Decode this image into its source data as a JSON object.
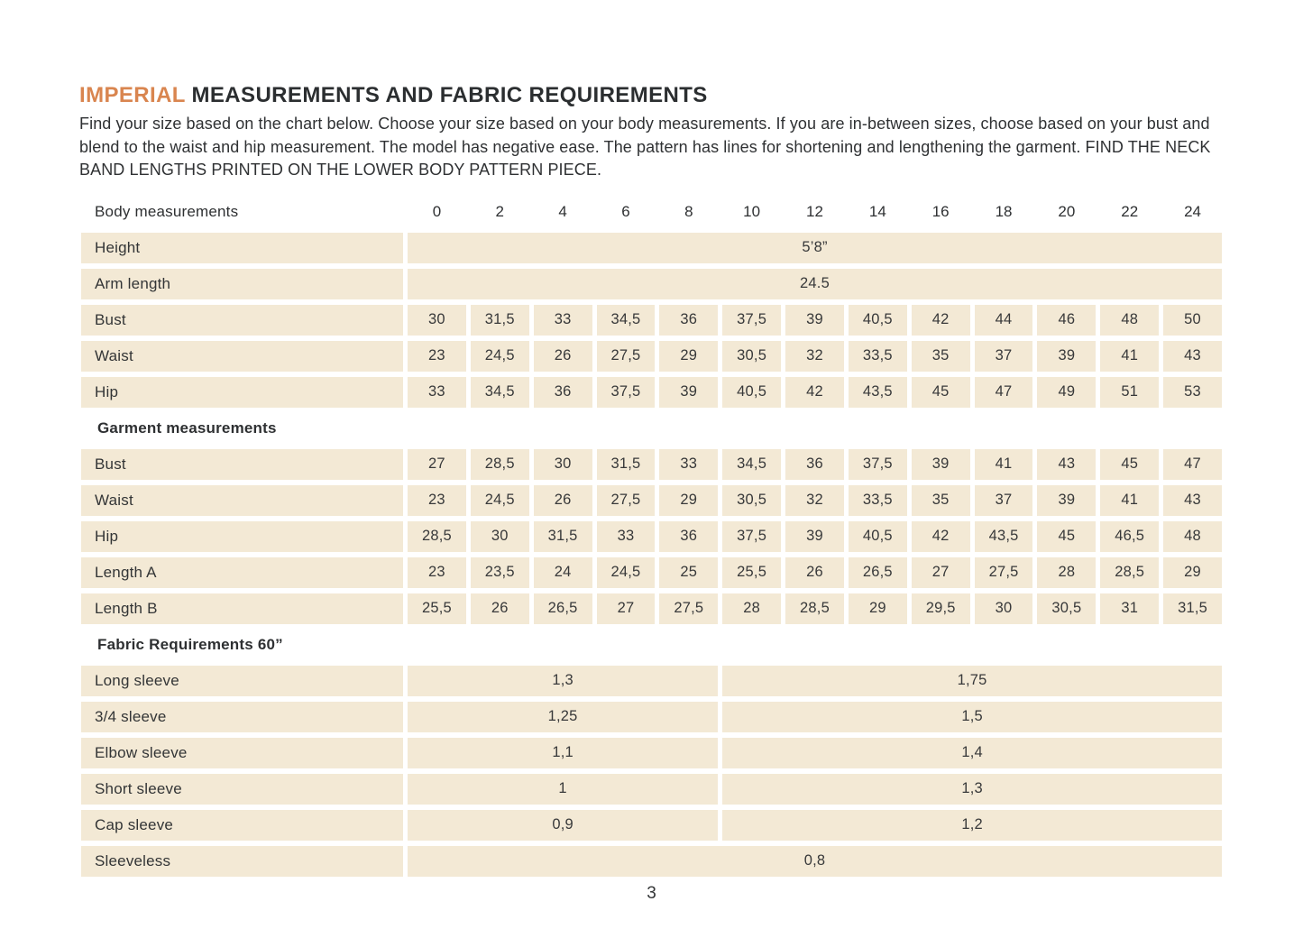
{
  "page": {
    "title_highlight": "IMPERIAL",
    "title_rest": " MEASUREMENTS AND FABRIC REQUIREMENTS",
    "intro": "Find your size based on the chart below. Choose your size based on your body measurements. If you are in-between sizes, choose based on your bust and blend to the waist and hip measurement. The model has negative ease. The pattern has lines for shortening and lengthening the garment. FIND THE NECK BAND LENGTHS PRINTED ON THE LOWER BODY PATTERN PIECE.",
    "page_number": "3"
  },
  "colors": {
    "accent_orange": "#d9854f",
    "cell_beige": "#f3e9d5",
    "text_dark": "#2e3032"
  },
  "size_table": {
    "header_label": "Body measurements",
    "sizes": [
      "0",
      "2",
      "4",
      "6",
      "8",
      "10",
      "12",
      "14",
      "16",
      "18",
      "20",
      "22",
      "24"
    ],
    "body_rows": [
      {
        "label": "Height",
        "type": "full",
        "value": "5’8”"
      },
      {
        "label": "Arm length",
        "type": "full",
        "value": "24.5"
      },
      {
        "label": "Bust",
        "type": "cells",
        "values": [
          "30",
          "31,5",
          "33",
          "34,5",
          "36",
          "37,5",
          "39",
          "40,5",
          "42",
          "44",
          "46",
          "48",
          "50"
        ]
      },
      {
        "label": "Waist",
        "type": "cells",
        "values": [
          "23",
          "24,5",
          "26",
          "27,5",
          "29",
          "30,5",
          "32",
          "33,5",
          "35",
          "37",
          "39",
          "41",
          "43"
        ]
      },
      {
        "label": "Hip",
        "type": "cells",
        "values": [
          "33",
          "34,5",
          "36",
          "37,5",
          "39",
          "40,5",
          "42",
          "43,5",
          "45",
          "47",
          "49",
          "51",
          "53"
        ]
      }
    ],
    "garment_section_label": "Garment measurements",
    "garment_rows": [
      {
        "label": "Bust",
        "type": "cells",
        "values": [
          "27",
          "28,5",
          "30",
          "31,5",
          "33",
          "34,5",
          "36",
          "37,5",
          "39",
          "41",
          "43",
          "45",
          "47"
        ]
      },
      {
        "label": "Waist",
        "type": "cells",
        "values": [
          "23",
          "24,5",
          "26",
          "27,5",
          "29",
          "30,5",
          "32",
          "33,5",
          "35",
          "37",
          "39",
          "41",
          "43"
        ]
      },
      {
        "label": "Hip",
        "type": "cells",
        "values": [
          "28,5",
          "30",
          "31,5",
          "33",
          "36",
          "37,5",
          "39",
          "40,5",
          "42",
          "43,5",
          "45",
          "46,5",
          "48"
        ]
      },
      {
        "label": "Length A",
        "type": "cells",
        "values": [
          "23",
          "23,5",
          "24",
          "24,5",
          "25",
          "25,5",
          "26",
          "26,5",
          "27",
          "27,5",
          "28",
          "28,5",
          "29"
        ]
      },
      {
        "label": "Length B",
        "type": "cells",
        "values": [
          "25,5",
          "26",
          "26,5",
          "27",
          "27,5",
          "28",
          "28,5",
          "29",
          "29,5",
          "30",
          "30,5",
          "31",
          "31,5"
        ]
      }
    ],
    "fabric_section_label": "Fabric Requirements  60”",
    "fabric_rows": [
      {
        "label": "Long sleeve",
        "type": "split",
        "left": "1,3",
        "right": "1,75"
      },
      {
        "label": "3/4 sleeve",
        "type": "split",
        "left": "1,25",
        "right": "1,5"
      },
      {
        "label": "Elbow sleeve",
        "type": "split",
        "left": "1,1",
        "right": "1,4"
      },
      {
        "label": "Short sleeve",
        "type": "split",
        "left": "1",
        "right": "1,3"
      },
      {
        "label": "Cap sleeve",
        "type": "split",
        "left": "0,9",
        "right": "1,2"
      },
      {
        "label": "Sleeveless",
        "type": "full",
        "value": "0,8"
      }
    ]
  }
}
